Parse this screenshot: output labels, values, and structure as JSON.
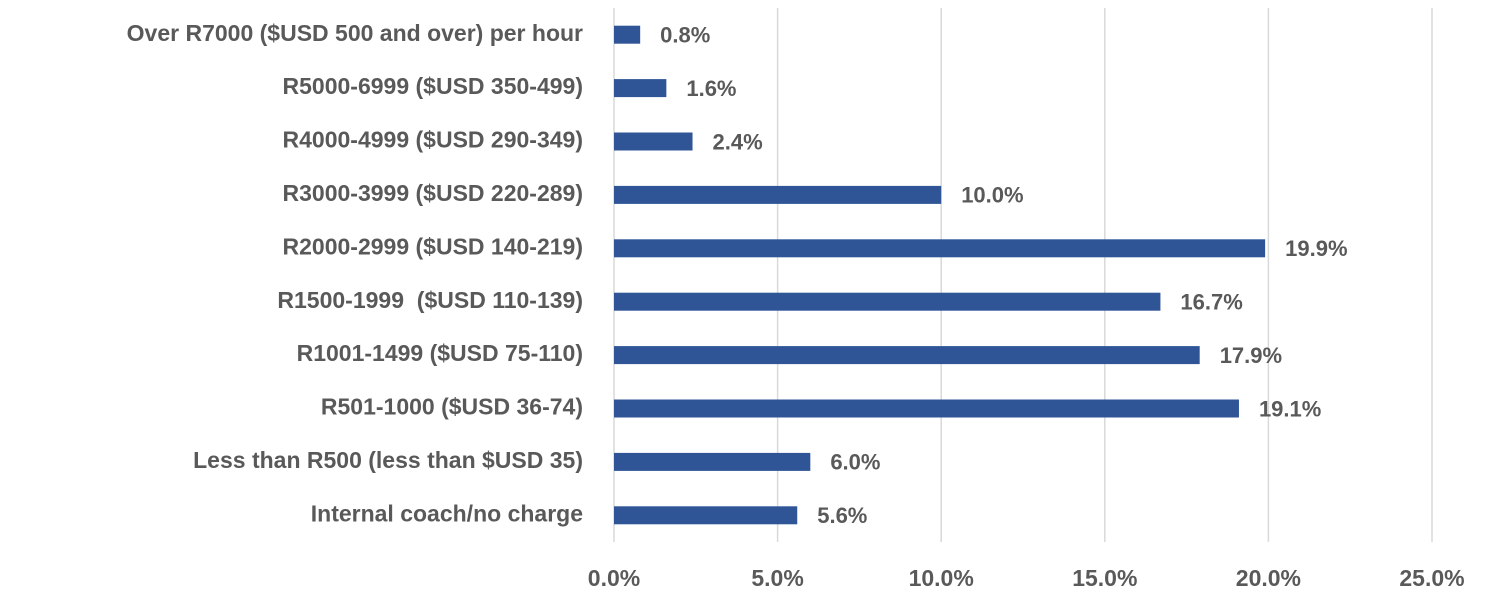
{
  "chart_data": {
    "type": "bar",
    "orientation": "horizontal",
    "categories": [
      "Over R7000 ($USD 500 and over) per hour",
      "R5000-6999 ($USD 350-499)",
      "R4000-4999 ($USD 290-349)",
      "R3000-3999 ($USD 220-289)",
      "R2000-2999 ($USD 140-219)",
      "R1500-1999  ($USD 110-139)",
      "R1001-1499 ($USD 75-110)",
      "R501-1000 ($USD 36-74)",
      "Less than R500 (less than $USD 35)",
      "Internal coach/no charge"
    ],
    "values": [
      0.8,
      1.6,
      2.4,
      10.0,
      19.9,
      16.7,
      17.9,
      19.1,
      6.0,
      5.6
    ],
    "value_labels": [
      "0.8%",
      "1.6%",
      "2.4%",
      "10.0%",
      "19.9%",
      "16.7%",
      "17.9%",
      "19.1%",
      "6.0%",
      "5.6%"
    ],
    "color": "#2f5597",
    "xlim": [
      0,
      25
    ],
    "xticks": [
      {
        "value": 0,
        "label": "0.0%"
      },
      {
        "value": 5,
        "label": "5.0%"
      },
      {
        "value": 10,
        "label": "10.0%"
      },
      {
        "value": 15,
        "label": "15.0%"
      },
      {
        "value": 20,
        "label": "20.0%"
      },
      {
        "value": 25,
        "label": "25.0%"
      }
    ],
    "grid": true
  }
}
